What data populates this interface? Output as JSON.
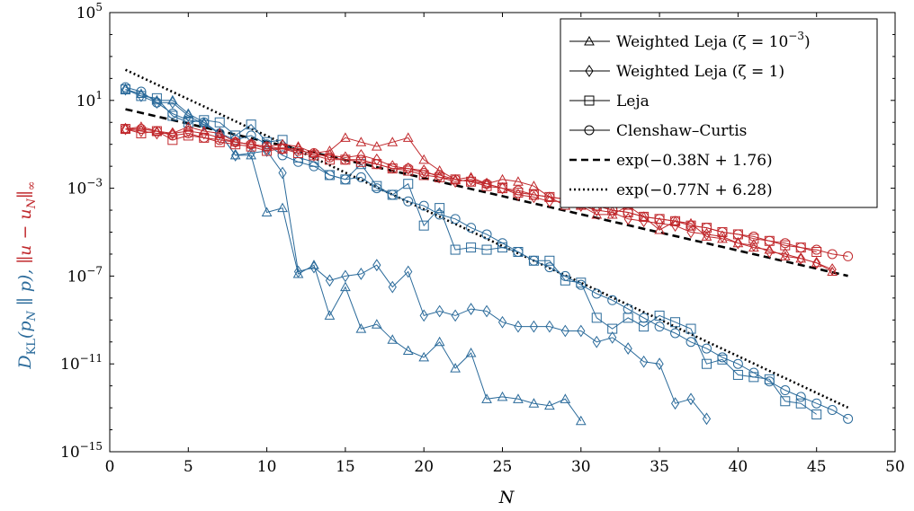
{
  "chart_data": {
    "type": "line",
    "xlabel": "N",
    "ylabel": {
      "part1": "D",
      "part1_sub": "KL",
      "part1_args": "(p",
      "part1_args_sub": "N",
      "part1_args_rest": " ∥ p),",
      "part2": "∥u − u",
      "part2_sub": "N",
      "part2_rest": "∥",
      "part2_rest_sub": "∞"
    },
    "xlim": [
      0,
      50
    ],
    "ylim_log10": [
      -15,
      5
    ],
    "yscale": "log",
    "grid": false,
    "legend_position": "top-right",
    "x_ticks": [
      "0",
      "5",
      "10",
      "15",
      "20",
      "25",
      "30",
      "35",
      "40",
      "45",
      "50"
    ],
    "x_tick_values": [
      0,
      5,
      10,
      15,
      20,
      25,
      30,
      35,
      40,
      45,
      50
    ],
    "y_ticks": [
      {
        "value_log10": 5,
        "base": "10",
        "exp": "5"
      },
      {
        "value_log10": 1,
        "base": "10",
        "exp": "1"
      },
      {
        "value_log10": -3,
        "base": "10",
        "exp": "−3"
      },
      {
        "value_log10": -7,
        "base": "10",
        "exp": "−7"
      },
      {
        "value_log10": -11,
        "base": "10",
        "exp": "−11"
      },
      {
        "value_log10": -15,
        "base": "10",
        "exp": "−15"
      }
    ],
    "colors": {
      "blue": "#2a6a9a",
      "red": "#c0282c",
      "black": "#000000"
    },
    "legend": [
      {
        "label": "Weighted Leja (ζ = 10",
        "sup": "−3",
        "after": ")",
        "marker": "triangle",
        "style": "solid"
      },
      {
        "label": "Weighted Leja (ζ = 1)",
        "sup": "",
        "after": "",
        "marker": "diamond",
        "style": "solid"
      },
      {
        "label": "Leja",
        "sup": "",
        "after": "",
        "marker": "square",
        "style": "solid"
      },
      {
        "label": "Clenshaw–Curtis",
        "sup": "",
        "after": "",
        "marker": "circle",
        "style": "solid"
      },
      {
        "label": "exp(−0.38N + 1.76)",
        "sup": "",
        "after": "",
        "marker": "none",
        "style": "dashed"
      },
      {
        "label": "exp(−0.77N + 6.28)",
        "sup": "",
        "after": "",
        "marker": "none",
        "style": "dotted"
      }
    ],
    "series": [
      {
        "name": "Weighted Leja (ζ = 10−3) — D_KL",
        "axis": "left",
        "color": "blue",
        "marker": "triangle",
        "x": [
          1,
          2,
          3,
          4,
          5,
          6,
          7,
          8,
          9,
          10,
          11,
          12,
          13,
          14,
          15,
          16,
          17,
          18,
          19,
          20,
          21,
          22,
          23,
          24,
          25,
          26,
          27,
          28,
          29,
          30
        ],
        "y_log10": [
          1.5,
          1.3,
          1.0,
          1.0,
          0.4,
          0.0,
          -0.5,
          -1.5,
          -1.5,
          -4.1,
          -3.9,
          -6.9,
          -6.5,
          -8.8,
          -7.5,
          -9.4,
          -9.2,
          -9.9,
          -10.4,
          -10.7,
          -10.0,
          -11.2,
          -10.5,
          -12.6,
          -12.5,
          -12.6,
          -12.8,
          -12.9,
          -12.6,
          -13.6
        ]
      },
      {
        "name": "Weighted Leja (ζ = 1) — D_KL",
        "axis": "left",
        "color": "blue",
        "marker": "diamond",
        "x": [
          1,
          2,
          3,
          4,
          5,
          6,
          7,
          8,
          9,
          10,
          11,
          12,
          13,
          14,
          15,
          16,
          17,
          18,
          19,
          20,
          21,
          22,
          23,
          24,
          25,
          26,
          27,
          28,
          29,
          30,
          31,
          32,
          33,
          34,
          35,
          36,
          37,
          38
        ],
        "y_log10": [
          1.5,
          1.2,
          0.9,
          0.9,
          0.3,
          -0.1,
          -0.5,
          -1.5,
          -1.4,
          -1.3,
          -2.3,
          -6.8,
          -6.6,
          -7.2,
          -7.0,
          -6.9,
          -6.5,
          -7.5,
          -6.8,
          -8.8,
          -8.6,
          -8.8,
          -8.5,
          -8.6,
          -9.1,
          -9.3,
          -9.3,
          -9.3,
          -9.5,
          -9.5,
          -10.0,
          -9.8,
          -10.3,
          -10.9,
          -11.0,
          -12.8,
          -12.6,
          -13.5
        ]
      },
      {
        "name": "Leja — D_KL",
        "axis": "left",
        "color": "blue",
        "marker": "square",
        "x": [
          1,
          2,
          3,
          4,
          5,
          6,
          7,
          8,
          9,
          10,
          11,
          12,
          13,
          14,
          15,
          16,
          17,
          18,
          19,
          20,
          21,
          22,
          23,
          24,
          25,
          26,
          27,
          28,
          29,
          30,
          31,
          32,
          33,
          34,
          35,
          36,
          37,
          38,
          39,
          40,
          41,
          42,
          43,
          44,
          45
        ],
        "y_log10": [
          1.5,
          1.2,
          1.1,
          0.3,
          0.0,
          0.1,
          0.0,
          -0.6,
          -0.1,
          -0.9,
          -0.8,
          -1.6,
          -1.8,
          -2.4,
          -2.6,
          -1.9,
          -2.9,
          -3.3,
          -2.8,
          -4.7,
          -3.9,
          -5.8,
          -5.7,
          -5.8,
          -5.7,
          -5.9,
          -6.3,
          -6.3,
          -7.2,
          -7.3,
          -8.9,
          -9.4,
          -8.9,
          -9.3,
          -8.8,
          -9.1,
          -9.4,
          -11.0,
          -10.8,
          -11.5,
          -11.6,
          -11.7,
          -12.7,
          -12.8,
          -13.3
        ]
      },
      {
        "name": "Clenshaw–Curtis — D_KL",
        "axis": "left",
        "color": "blue",
        "marker": "circle",
        "x": [
          1,
          2,
          3,
          4,
          5,
          6,
          7,
          8,
          9,
          10,
          11,
          12,
          13,
          14,
          15,
          16,
          17,
          18,
          19,
          20,
          21,
          22,
          23,
          24,
          25,
          26,
          27,
          28,
          29,
          30,
          31,
          32,
          33,
          34,
          35,
          36,
          37,
          38,
          39,
          40,
          41,
          42,
          43,
          44,
          45,
          46,
          47
        ],
        "y_log10": [
          1.6,
          1.4,
          0.9,
          0.4,
          0.1,
          0.0,
          -0.5,
          -0.8,
          -0.6,
          -1.0,
          -1.5,
          -1.8,
          -2.0,
          -2.4,
          -2.6,
          -2.5,
          -3.0,
          -3.3,
          -3.6,
          -3.8,
          -4.2,
          -4.4,
          -4.8,
          -5.1,
          -5.5,
          -5.9,
          -6.3,
          -6.6,
          -7.0,
          -7.4,
          -7.8,
          -8.1,
          -8.5,
          -8.9,
          -9.3,
          -9.6,
          -10.0,
          -10.3,
          -10.7,
          -11.0,
          -11.4,
          -11.8,
          -12.2,
          -12.5,
          -12.8,
          -13.1,
          -13.5
        ]
      },
      {
        "name": "Weighted Leja (ζ = 10−3) — error",
        "axis": "right",
        "color": "red",
        "marker": "triangle",
        "x": [
          1,
          2,
          3,
          4,
          5,
          6,
          7,
          8,
          9,
          10,
          11,
          12,
          13,
          14,
          15,
          16,
          17,
          18,
          19,
          20,
          21,
          22,
          23,
          24,
          25,
          26,
          27,
          28,
          29,
          30,
          31,
          32,
          33,
          34,
          35,
          36,
          37,
          38,
          39,
          40,
          41,
          42,
          43,
          44,
          45,
          46
        ],
        "y_log10": [
          -0.3,
          -0.2,
          -0.4,
          -0.5,
          -0.2,
          -0.4,
          -0.5,
          -0.9,
          -1.0,
          -1.1,
          -1.0,
          -1.1,
          -1.4,
          -1.3,
          -0.7,
          -0.9,
          -1.1,
          -0.9,
          -0.7,
          -1.7,
          -2.2,
          -2.6,
          -2.5,
          -2.8,
          -2.6,
          -2.7,
          -2.9,
          -3.4,
          -3.8,
          -3.8,
          -4.2,
          -4.2,
          -3.8,
          -4.3,
          -4.9,
          -4.5,
          -4.6,
          -5.2,
          -5.3,
          -5.5,
          -5.7,
          -5.8,
          -6.1,
          -6.2,
          -6.4,
          -6.8
        ]
      },
      {
        "name": "Weighted Leja (ζ = 1) — error",
        "axis": "right",
        "color": "red",
        "marker": "diamond",
        "x": [
          1,
          2,
          3,
          4,
          5,
          6,
          7,
          8,
          9,
          10,
          11,
          12,
          13,
          14,
          15,
          16,
          17,
          18,
          19,
          20,
          21,
          22,
          23,
          24,
          25,
          26,
          27,
          28,
          29,
          30,
          31,
          32,
          33,
          34,
          35,
          36,
          37,
          38,
          39,
          40,
          41,
          42,
          43,
          44,
          45,
          46
        ],
        "y_log10": [
          -0.3,
          -0.4,
          -0.5,
          -0.5,
          -0.4,
          -0.5,
          -0.7,
          -0.9,
          -1.0,
          -1.2,
          -1.2,
          -1.2,
          -1.5,
          -1.5,
          -1.6,
          -1.5,
          -1.7,
          -2.0,
          -2.1,
          -2.2,
          -2.5,
          -2.7,
          -2.6,
          -2.8,
          -3.0,
          -3.3,
          -3.4,
          -3.6,
          -3.6,
          -3.8,
          -4.0,
          -4.1,
          -4.4,
          -4.5,
          -4.6,
          -4.7,
          -5.0,
          -5.1,
          -5.2,
          -5.5,
          -5.6,
          -5.9,
          -6.0,
          -6.2,
          -6.4,
          -6.7
        ]
      },
      {
        "name": "Leja — error",
        "axis": "right",
        "color": "red",
        "marker": "square",
        "x": [
          1,
          2,
          3,
          4,
          5,
          6,
          7,
          8,
          9,
          10,
          11,
          12,
          13,
          14,
          15,
          16,
          17,
          18,
          19,
          20,
          21,
          22,
          23,
          24,
          25,
          26,
          27,
          28,
          29,
          30,
          31,
          32,
          33,
          34,
          35,
          36,
          37,
          38,
          39,
          40,
          41,
          42,
          43,
          44,
          45
        ],
        "y_log10": [
          -0.3,
          -0.5,
          -0.4,
          -0.8,
          -0.6,
          -0.7,
          -0.9,
          -1.0,
          -1.1,
          -1.3,
          -1.2,
          -1.4,
          -1.5,
          -1.7,
          -1.7,
          -1.8,
          -1.9,
          -2.1,
          -2.2,
          -2.4,
          -2.5,
          -2.6,
          -2.7,
          -2.9,
          -3.0,
          -3.2,
          -3.3,
          -3.4,
          -3.5,
          -3.7,
          -3.8,
          -4.0,
          -4.1,
          -4.3,
          -4.4,
          -4.5,
          -4.7,
          -4.8,
          -5.0,
          -5.1,
          -5.3,
          -5.4,
          -5.6,
          -5.7,
          -5.9
        ]
      },
      {
        "name": "Clenshaw–Curtis — error",
        "axis": "right",
        "color": "red",
        "marker": "circle",
        "x": [
          1,
          2,
          3,
          4,
          5,
          6,
          7,
          8,
          9,
          10,
          11,
          12,
          13,
          14,
          15,
          16,
          17,
          18,
          19,
          20,
          21,
          22,
          23,
          24,
          25,
          26,
          27,
          28,
          29,
          30,
          31,
          32,
          33,
          34,
          35,
          36,
          37,
          38,
          39,
          40,
          41,
          42,
          43,
          44,
          45,
          46,
          47
        ],
        "y_log10": [
          -0.3,
          -0.3,
          -0.4,
          -0.6,
          -0.5,
          -0.7,
          -0.8,
          -0.9,
          -1.0,
          -1.1,
          -1.2,
          -1.3,
          -1.4,
          -1.6,
          -1.7,
          -1.7,
          -1.9,
          -2.1,
          -2.1,
          -2.3,
          -2.4,
          -2.6,
          -2.7,
          -2.8,
          -3.0,
          -3.1,
          -3.3,
          -3.4,
          -3.5,
          -3.7,
          -3.8,
          -4.0,
          -4.1,
          -4.3,
          -4.4,
          -4.5,
          -4.7,
          -4.8,
          -5.0,
          -5.1,
          -5.2,
          -5.4,
          -5.5,
          -5.7,
          -5.8,
          -6.0,
          -6.1
        ]
      }
    ],
    "fits": [
      {
        "label": "exp(−0.38N + 1.76)",
        "slope": -0.38,
        "intercept": 1.76,
        "x_range": [
          1,
          47
        ],
        "style": "dashed"
      },
      {
        "label": "exp(−0.77N + 6.28)",
        "slope": -0.77,
        "intercept": 6.28,
        "x_range": [
          1,
          47
        ],
        "style": "dotted"
      }
    ]
  }
}
